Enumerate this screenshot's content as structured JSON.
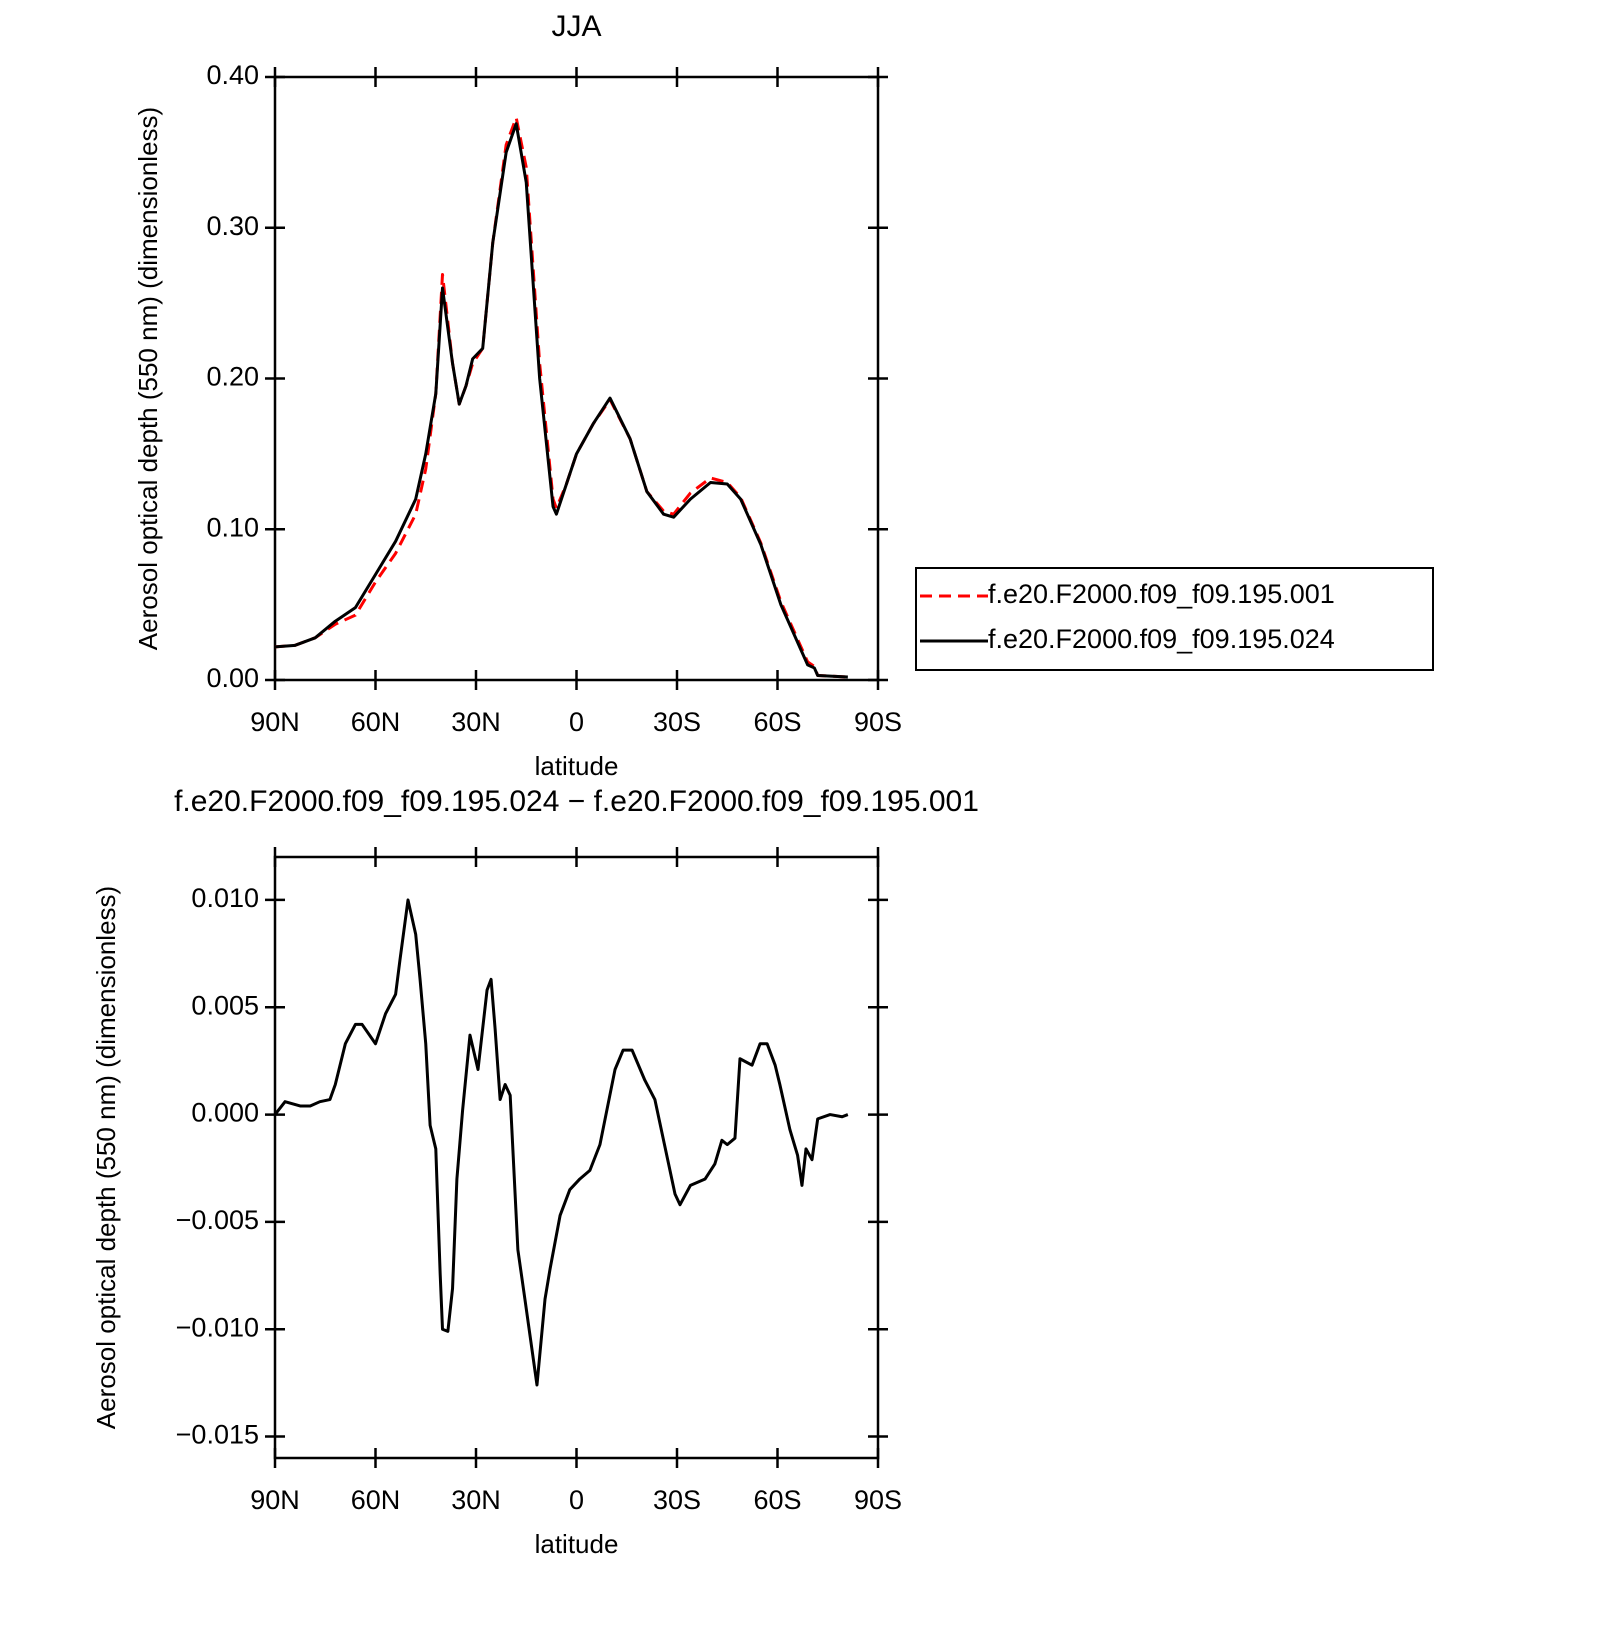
{
  "chart_data": [
    {
      "type": "line",
      "title": "JJA",
      "xlabel": "latitude",
      "ylabel": "Aerosol optical depth (550 nm) (dimensionless)",
      "x": [
        90,
        84,
        78,
        72,
        66,
        60,
        54,
        48,
        45,
        42,
        40,
        37,
        35,
        33,
        31,
        28,
        25,
        21,
        18,
        15,
        11,
        7,
        6,
        3,
        0,
        -5,
        -10,
        -16,
        -21,
        -26,
        -29,
        -34,
        -40,
        -45,
        -49,
        -55,
        -61,
        -67,
        -69,
        -71,
        -72,
        -81
      ],
      "series": [
        {
          "name": "f.e20.F2000.f09_f09.195.001",
          "color": "#ff0000",
          "line_style": "dashed",
          "values": [
            0.022,
            0.023,
            0.028,
            0.037,
            0.043,
            0.065,
            0.084,
            0.11,
            0.14,
            0.19,
            0.269,
            0.21,
            0.183,
            0.195,
            0.21,
            0.22,
            0.29,
            0.355,
            0.373,
            0.34,
            0.21,
            0.12,
            0.114,
            0.13,
            0.15,
            0.17,
            0.186,
            0.16,
            0.125,
            0.112,
            0.11,
            0.124,
            0.134,
            0.131,
            0.121,
            0.091,
            0.052,
            0.022,
            0.012,
            0.009,
            0.003,
            0.002
          ]
        },
        {
          "name": "f.e20.F2000.f09_f09.195.024",
          "color": "#000000",
          "line_style": "solid",
          "values": [
            0.022,
            0.023,
            0.028,
            0.039,
            0.048,
            0.07,
            0.092,
            0.12,
            0.15,
            0.19,
            0.26,
            0.21,
            0.183,
            0.195,
            0.213,
            0.22,
            0.29,
            0.35,
            0.369,
            0.33,
            0.2,
            0.115,
            0.11,
            0.13,
            0.15,
            0.17,
            0.187,
            0.16,
            0.125,
            0.11,
            0.108,
            0.12,
            0.131,
            0.13,
            0.12,
            0.09,
            0.05,
            0.02,
            0.01,
            0.008,
            0.003,
            0.002
          ]
        }
      ],
      "xlim": [
        90,
        -90
      ],
      "xticks": [
        {
          "value": 90,
          "label": "90N"
        },
        {
          "value": 60,
          "label": "60N"
        },
        {
          "value": 30,
          "label": "30N"
        },
        0,
        {
          "value": -30,
          "label": "30S"
        },
        {
          "value": -60,
          "label": "60S"
        },
        {
          "value": -90,
          "label": "90S"
        }
      ],
      "ylim": [
        0,
        0.4
      ],
      "yticks": [
        {
          "value": 0,
          "label": "0.00"
        },
        {
          "value": 0.1,
          "label": "0.10"
        },
        {
          "value": 0.2,
          "label": "0.20"
        },
        {
          "value": 0.3,
          "label": "0.30"
        },
        {
          "value": 0.4,
          "label": "0.40"
        }
      ],
      "legend": "right"
    },
    {
      "type": "line",
      "title": "f.e20.F2000.f09_f09.195.024 − f.e20.F2000.f09_f09.195.001",
      "xlabel": "latitude",
      "ylabel": "Aerosol optical depth (550 nm) (dimensionless)",
      "x": [
        90,
        87,
        82.5,
        79.5,
        76.6,
        73.6,
        72,
        69,
        66,
        64,
        60,
        57,
        54,
        52.7,
        50.3,
        48,
        46.7,
        45,
        43.7,
        42,
        40.7,
        40,
        38.4,
        37,
        35.7,
        34,
        31.8,
        29.4,
        26.7,
        25.5,
        24.3,
        22.8,
        21.3,
        19.8,
        17.5,
        15.4,
        11.8,
        9.4,
        7.9,
        4.9,
        2,
        -1,
        -4,
        -7,
        -11.5,
        -13.9,
        -16.6,
        -20.4,
        -23.4,
        -29.4,
        -30.9,
        -34,
        -38.4,
        -41.3,
        -43.4,
        -45,
        -47.3,
        -48.8,
        -52.4,
        -54.8,
        -56.9,
        -59.3,
        -60.7,
        -63.7,
        -66,
        -67.3,
        -68.5,
        -70.3,
        -72,
        -75.7,
        -79.3,
        -81
      ],
      "values": [
        0.0,
        0.0006,
        0.0004,
        0.0004,
        0.0006,
        0.0007,
        0.0014,
        0.0033,
        0.0042,
        0.0042,
        0.0033,
        0.0047,
        0.0056,
        0.0072,
        0.01,
        0.0084,
        0.0063,
        0.0033,
        -0.0005,
        -0.0016,
        -0.0074,
        -0.01,
        -0.0101,
        -0.0081,
        -0.003,
        0.0002,
        0.0037,
        0.0021,
        0.0058,
        0.0063,
        0.004,
        0.0007,
        0.0014,
        0.0009,
        -0.0063,
        -0.0086,
        -0.0126,
        -0.0086,
        -0.0072,
        -0.0047,
        -0.0035,
        -0.003,
        -0.0026,
        -0.0014,
        0.0021,
        0.003,
        0.003,
        0.0016,
        0.0007,
        -0.0037,
        -0.0042,
        -0.0033,
        -0.003,
        -0.0023,
        -0.0012,
        -0.0014,
        -0.0011,
        0.0026,
        0.0023,
        0.0033,
        0.0033,
        0.0023,
        0.0014,
        -0.0007,
        -0.0019,
        -0.0033,
        -0.0016,
        -0.0021,
        -0.0002,
        0.0,
        -0.0001,
        0.0
      ],
      "color": "#000000",
      "line_style": "solid",
      "xlim": [
        90,
        -90
      ],
      "xticks": [
        {
          "value": 90,
          "label": "90N"
        },
        {
          "value": 60,
          "label": "60N"
        },
        {
          "value": 30,
          "label": "30N"
        },
        0,
        {
          "value": -30,
          "label": "30S"
        },
        {
          "value": -60,
          "label": "60S"
        },
        {
          "value": -90,
          "label": "90S"
        }
      ],
      "ylim": [
        -0.016,
        0.012
      ],
      "yticks": [
        {
          "value": -0.015,
          "label": "−0.015"
        },
        {
          "value": -0.01,
          "label": "−0.010"
        },
        {
          "value": -0.005,
          "label": "−0.005"
        },
        {
          "value": 0,
          "label": "0.000"
        },
        0.005,
        {
          "value": 0.01,
          "label": "0.010"
        }
      ]
    }
  ]
}
